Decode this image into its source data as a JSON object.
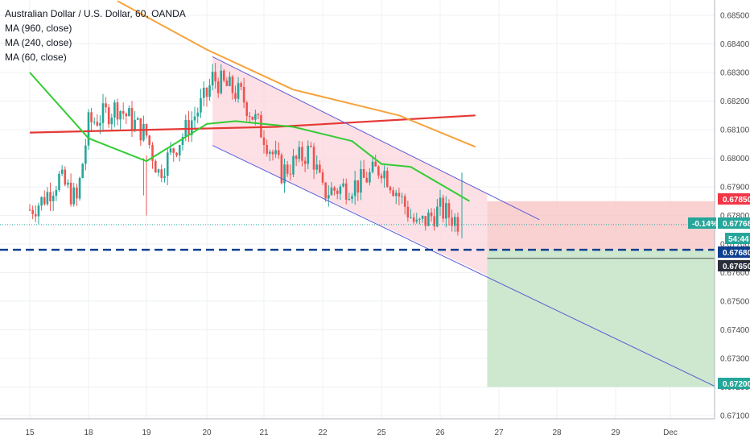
{
  "legend": {
    "symbol_title": "Australian Dollar / U.S. Dollar, 60, OANDA",
    "ma_long": "MA (960, close)",
    "ma_mid": "MA (240, close)",
    "ma_short": "MA (60, close)"
  },
  "price_tags": {
    "target_upper": "0.67850",
    "current_change": "-0.14%",
    "current_price": "0.67768",
    "countdown": "54:44",
    "support": "0.67680",
    "low_level": "0.67650",
    "target_lower": "0.67200"
  },
  "colors": {
    "up_candle": "#26a69a",
    "down_candle": "#ef5350",
    "ma_960": "#e53935",
    "ma_240": "#f7a23b",
    "ma_60": "#33cc33",
    "channel_line": "#5b5bd6",
    "support_line": "#0d3f8f",
    "stop_zone": "#f8c5c6",
    "target_zone": "#c8e6c9"
  },
  "chart_data": {
    "type": "candlestick",
    "title": "Australian Dollar / U.S. Dollar, 60, OANDA",
    "ylim": [
      0.6705,
      0.6855
    ],
    "y_ticks": [
      "0.68500",
      "0.68400",
      "0.68300",
      "0.68200",
      "0.68100",
      "0.68000",
      "0.67900",
      "0.67800",
      "0.67700",
      "0.67600",
      "0.67500",
      "0.67400",
      "0.67300",
      "0.67200",
      "0.67100"
    ],
    "x_ticks": [
      "15",
      "18",
      "19",
      "20",
      "21",
      "22",
      "25",
      "26",
      "27",
      "28",
      "29",
      "Dec"
    ],
    "series": [
      {
        "name": "MA (960, close)",
        "points": [
          [
            0,
            0.6809
          ],
          [
            4.2,
            0.6811
          ],
          [
            7.6,
            0.6815
          ]
        ]
      },
      {
        "name": "MA (240, close)",
        "points": [
          [
            1.5,
            0.6855
          ],
          [
            3.0,
            0.6838
          ],
          [
            4.5,
            0.6824
          ],
          [
            6.3,
            0.6815
          ],
          [
            7.6,
            0.6804
          ]
        ]
      },
      {
        "name": "MA (60, close)",
        "points": [
          [
            0,
            0.683
          ],
          [
            1.0,
            0.6807
          ],
          [
            2.0,
            0.6799
          ],
          [
            3.0,
            0.6812
          ],
          [
            3.5,
            0.6813
          ],
          [
            4.5,
            0.6811
          ],
          [
            5.5,
            0.6806
          ],
          [
            6.0,
            0.6798
          ],
          [
            6.5,
            0.6797
          ],
          [
            7.0,
            0.6791
          ],
          [
            7.5,
            0.6785
          ]
        ]
      }
    ],
    "channel": {
      "upper": [
        [
          3.1,
          0.68355
        ],
        [
          8.7,
          0.67785
        ]
      ],
      "lower": [
        [
          3.1,
          0.68045
        ],
        [
          11.95,
          0.6719
        ]
      ]
    },
    "support_level": 0.6768,
    "position": {
      "x_start": 7.8,
      "x_end": 11.95,
      "entry": 0.6768,
      "stop": 0.6785,
      "target": 0.672
    },
    "candles": []
  }
}
